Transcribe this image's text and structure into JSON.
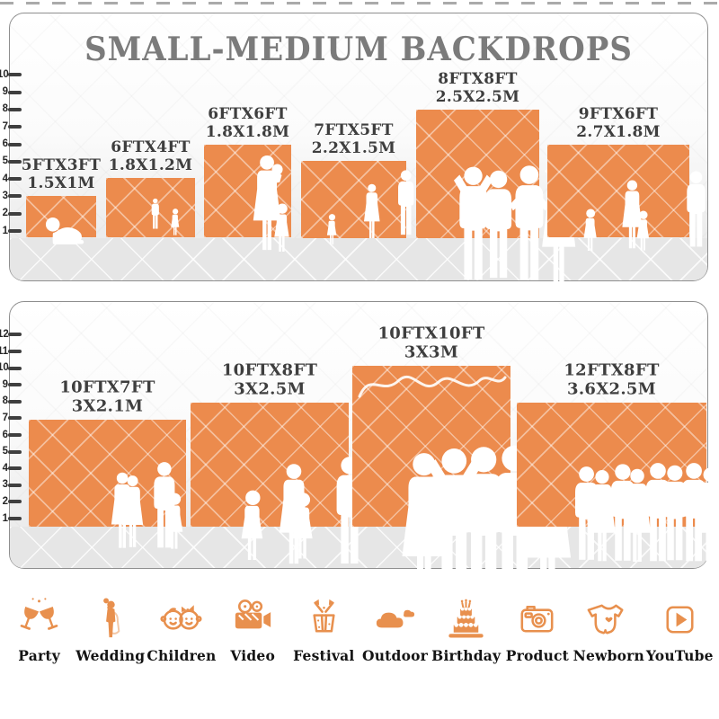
{
  "title": "SMALL-MEDIUM BACKDROPS",
  "colors": {
    "backdrop_orange": "#EC8B4D",
    "icon_orange": "#E8904E",
    "title_gray": "#7B7B7B",
    "label_gray": "#3E3E3E",
    "floor_gray": "#E6E6E6",
    "ruler_tick": "#3F3F3F"
  },
  "panels": [
    {
      "name": "small-medium-top",
      "ruler_max": 10,
      "ruler_unit": "ft",
      "backdrops": [
        {
          "size_ft": "5FTX3FT",
          "size_m": "1.5X1M",
          "figures": [
            [
              "baby",
              0.48,
              0.75
            ]
          ]
        },
        {
          "size_ft": "6FTX4FT",
          "size_m": "1.8X1.2M",
          "figures": [
            [
              "man",
              0.4,
              0.78
            ],
            [
              "girl",
              0.64,
              0.62
            ]
          ]
        },
        {
          "size_ft": "6FTX6FT",
          "size_m": "1.8X1.8M",
          "figures": [
            [
              "woman-baby",
              0.42,
              0.97
            ],
            [
              "girl",
              0.74,
              0.46
            ]
          ]
        },
        {
          "size_ft": "7FTX5FT",
          "size_m": "2.2X1.5M",
          "figures": [
            [
              "girl",
              0.16,
              0.42
            ],
            [
              "woman",
              0.44,
              0.8
            ],
            [
              "man",
              0.72,
              0.98
            ]
          ]
        },
        {
          "size_ft": "8FTX8FT",
          "size_m": "2.5X2.5M",
          "figures": [
            [
              "man-up",
              0.15,
              0.62
            ],
            [
              "man",
              0.37,
              0.59
            ],
            [
              "man-hips",
              0.6,
              0.63
            ],
            [
              "woman-hat",
              0.84,
              0.61
            ]
          ]
        },
        {
          "size_ft": "9FTX6FT",
          "size_m": "2.7X1.8M",
          "figures": [
            [
              "girl",
              0.13,
              0.4
            ],
            [
              "woman",
              0.32,
              0.7
            ],
            [
              "girl",
              0.51,
              0.38
            ],
            [
              "man",
              0.74,
              0.8
            ]
          ]
        }
      ]
    },
    {
      "name": "small-medium-bottom",
      "ruler_max": 12,
      "ruler_unit": "ft",
      "backdrops": [
        {
          "size_ft": "10FTX7FT",
          "size_m": "3X2.1M",
          "figures": [
            [
              "woman",
              0.32,
              0.58
            ],
            [
              "woman",
              0.4,
              0.55
            ],
            [
              "man",
              0.55,
              0.68
            ],
            [
              "girl",
              0.72,
              0.4
            ]
          ]
        },
        {
          "size_ft": "10FTX8FT",
          "size_m": "3X2.5M",
          "figures": [
            [
              "girl",
              0.17,
              0.37
            ],
            [
              "woman",
              0.34,
              0.57
            ],
            [
              "girl",
              0.5,
              0.35
            ],
            [
              "man",
              0.67,
              0.63
            ]
          ]
        },
        {
          "size_ft": "10FTX10FT",
          "size_m": "3X3M",
          "figures": [
            [
              "woman",
              0.09,
              0.51
            ],
            [
              "man-up",
              0.27,
              0.54
            ],
            [
              "man",
              0.45,
              0.55
            ],
            [
              "man-hips",
              0.64,
              0.56
            ],
            [
              "woman-hat",
              0.85,
              0.54
            ]
          ]
        },
        {
          "size_ft": "12FTX8FT",
          "size_m": "3.6X2.5M",
          "figures": [
            [
              "man",
              0.06,
              0.55
            ],
            [
              "woman",
              0.15,
              0.52
            ],
            [
              "man",
              0.24,
              0.57
            ],
            [
              "woman",
              0.33,
              0.53
            ],
            [
              "man",
              0.42,
              0.58
            ],
            [
              "man",
              0.52,
              0.56
            ],
            [
              "man",
              0.61,
              0.58
            ],
            [
              "woman",
              0.71,
              0.54
            ],
            [
              "man",
              0.81,
              0.57
            ],
            [
              "woman",
              0.9,
              0.53
            ],
            [
              "man",
              0.96,
              0.55
            ]
          ]
        }
      ]
    }
  ],
  "categories": [
    {
      "label": "Party"
    },
    {
      "label": "Wedding"
    },
    {
      "label": "Children"
    },
    {
      "label": "Video"
    },
    {
      "label": "Festival"
    },
    {
      "label": "Outdoor"
    },
    {
      "label": "Birthday"
    },
    {
      "label": "Product"
    },
    {
      "label": "Newborn"
    },
    {
      "label": "YouTube"
    }
  ],
  "chart_data": [
    {
      "type": "bar",
      "title": "SMALL-MEDIUM BACKDROPS",
      "categories": [
        "5FTX3FT",
        "6FTX4FT",
        "6FTX6FT",
        "7FTX5FT",
        "8FTX8FT",
        "9FTX6FT"
      ],
      "series": [
        {
          "name": "width_ft",
          "values": [
            5,
            6,
            6,
            7,
            8,
            9
          ]
        },
        {
          "name": "height_ft",
          "values": [
            3,
            4,
            6,
            5,
            8,
            6
          ]
        },
        {
          "name": "width_m",
          "values": [
            1.5,
            1.8,
            1.8,
            2.2,
            2.5,
            2.7
          ]
        },
        {
          "name": "height_m",
          "values": [
            1,
            1.2,
            1.8,
            1.5,
            2.5,
            1.8
          ]
        }
      ],
      "ylabel": "feet",
      "ylim": [
        0,
        10
      ],
      "notes": "backdrop rectangles drawn to scale against a vertical ruler marked 1-10"
    },
    {
      "type": "bar",
      "title": "",
      "categories": [
        "10FTX7FT",
        "10FTX8FT",
        "10FTX10FT",
        "12FTX8FT"
      ],
      "series": [
        {
          "name": "width_ft",
          "values": [
            10,
            10,
            10,
            12
          ]
        },
        {
          "name": "height_ft",
          "values": [
            7,
            8,
            10,
            8
          ]
        },
        {
          "name": "width_m",
          "values": [
            3,
            3,
            3,
            3.6
          ]
        },
        {
          "name": "height_m",
          "values": [
            2.1,
            2.5,
            3,
            2.5
          ]
        }
      ],
      "ylabel": "feet",
      "ylim": [
        0,
        12
      ],
      "notes": "backdrop rectangles drawn to scale against a vertical ruler marked 1-12"
    }
  ]
}
